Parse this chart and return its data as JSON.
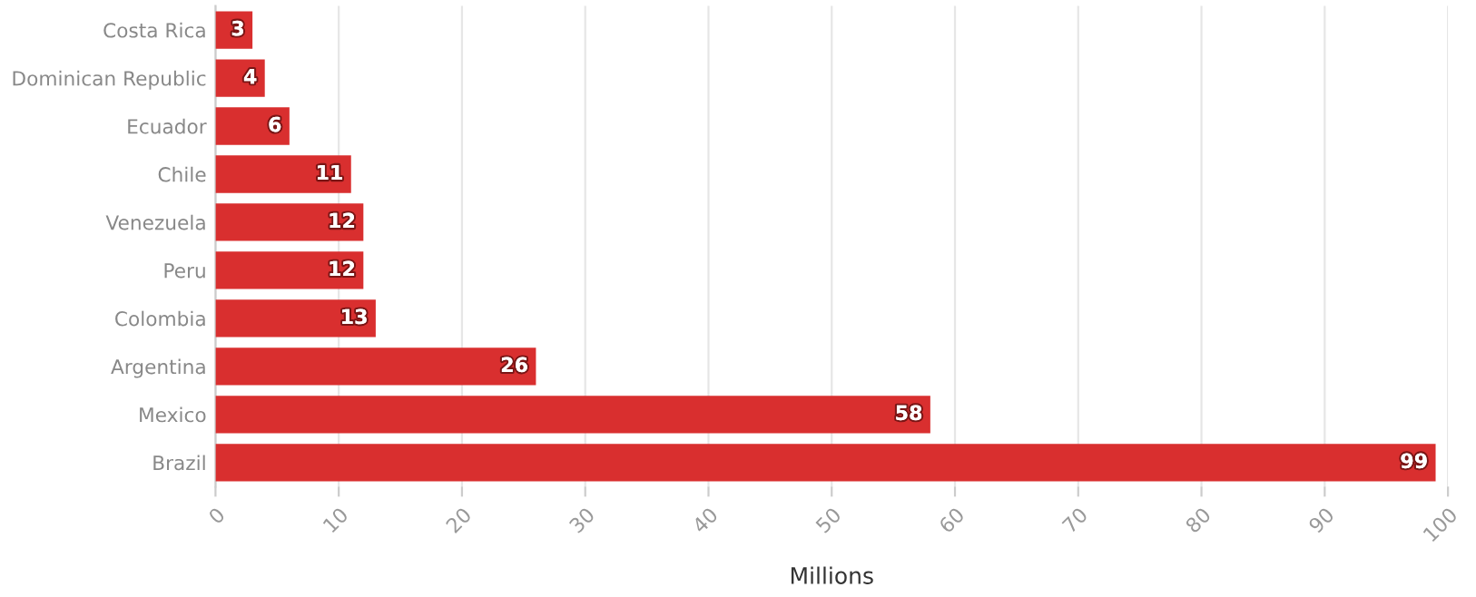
{
  "chart_data": {
    "type": "bar",
    "orientation": "horizontal",
    "xlabel": "Millions",
    "categories": [
      "Costa Rica",
      "Dominican Republic",
      "Ecuador",
      "Chile",
      "Venezuela",
      "Peru",
      "Colombia",
      "Argentina",
      "Mexico",
      "Brazil"
    ],
    "values": [
      3,
      4,
      6,
      11,
      12,
      12,
      13,
      26,
      58,
      99
    ],
    "color": "#d92f2f",
    "xlim": [
      0,
      100
    ],
    "xticks": [
      0,
      10,
      20,
      30,
      40,
      50,
      60,
      70,
      80,
      90,
      100
    ],
    "grid": "x",
    "data_labels": true,
    "legend": false
  }
}
